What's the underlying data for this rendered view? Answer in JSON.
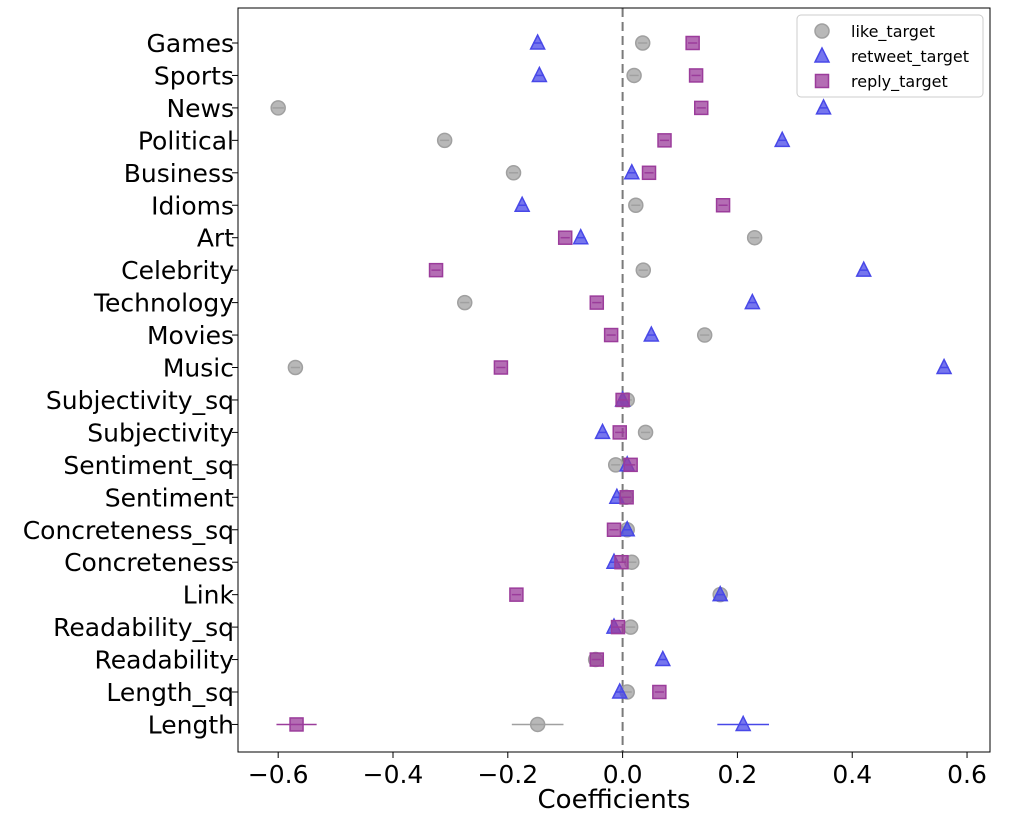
{
  "chart_data": {
    "type": "scatter",
    "title": "",
    "xlabel": "Coefficients",
    "ylabel": "",
    "xlim": [
      -0.67,
      0.64
    ],
    "xticks": [
      -0.6,
      -0.4,
      -0.2,
      0.0,
      0.2,
      0.4,
      0.6
    ],
    "xtick_labels": [
      "−0.6",
      "−0.4",
      "−0.2",
      "0.0",
      "0.2",
      "0.4",
      "0.6"
    ],
    "reference_line": 0.0,
    "grid": false,
    "legend_position": "top-right",
    "categories": [
      "Games",
      "Sports",
      "News",
      "Political",
      "Business",
      "Idioms",
      "Art",
      "Celebrity",
      "Technology",
      "Movies",
      "Music",
      "Subjectivity_sq",
      "Subjectivity",
      "Sentiment_sq",
      "Sentiment",
      "Concreteness_sq",
      "Concreteness",
      "Link",
      "Readability_sq",
      "Readability",
      "Length_sq",
      "Length"
    ],
    "series": [
      {
        "name": "like_target",
        "marker": "circle",
        "color": "#a0a0a0",
        "values": [
          0.035,
          0.02,
          -0.6,
          -0.31,
          -0.19,
          0.023,
          0.23,
          0.036,
          -0.275,
          0.143,
          -0.57,
          0.008,
          0.04,
          -0.012,
          0.006,
          0.008,
          0.016,
          0.17,
          0.014,
          -0.047,
          0.008,
          -0.148
        ],
        "errors": [
          0.008,
          0.008,
          0.01,
          0.008,
          0.008,
          0.008,
          0.008,
          0.008,
          0.008,
          0.008,
          0.008,
          0.008,
          0.008,
          0.008,
          0.008,
          0.008,
          0.008,
          0.008,
          0.008,
          0.008,
          0.008,
          0.045
        ]
      },
      {
        "name": "retweet_target",
        "marker": "triangle",
        "color": "#4848e8",
        "values": [
          -0.148,
          -0.145,
          0.35,
          0.278,
          0.016,
          -0.175,
          -0.073,
          0.42,
          0.226,
          0.05,
          0.56,
          0.0,
          -0.035,
          0.008,
          -0.01,
          0.008,
          -0.015,
          0.17,
          -0.015,
          0.07,
          -0.005,
          0.21
        ],
        "errors": [
          0.008,
          0.008,
          0.008,
          0.008,
          0.008,
          0.008,
          0.008,
          0.008,
          0.008,
          0.008,
          0.008,
          0.008,
          0.008,
          0.008,
          0.008,
          0.008,
          0.008,
          0.008,
          0.008,
          0.008,
          0.008,
          0.045
        ]
      },
      {
        "name": "reply_target",
        "marker": "square",
        "color": "#9b3c9b",
        "values": [
          0.122,
          0.128,
          0.137,
          0.073,
          0.046,
          0.175,
          -0.1,
          -0.325,
          -0.045,
          -0.02,
          -0.212,
          0.0,
          -0.005,
          0.014,
          0.007,
          -0.015,
          -0.002,
          -0.185,
          -0.008,
          -0.045,
          0.064,
          -0.568
        ],
        "errors": [
          0.008,
          0.008,
          0.008,
          0.008,
          0.008,
          0.008,
          0.008,
          0.008,
          0.008,
          0.008,
          0.008,
          0.008,
          0.008,
          0.008,
          0.008,
          0.008,
          0.008,
          0.008,
          0.008,
          0.008,
          0.008,
          0.035
        ]
      }
    ]
  }
}
